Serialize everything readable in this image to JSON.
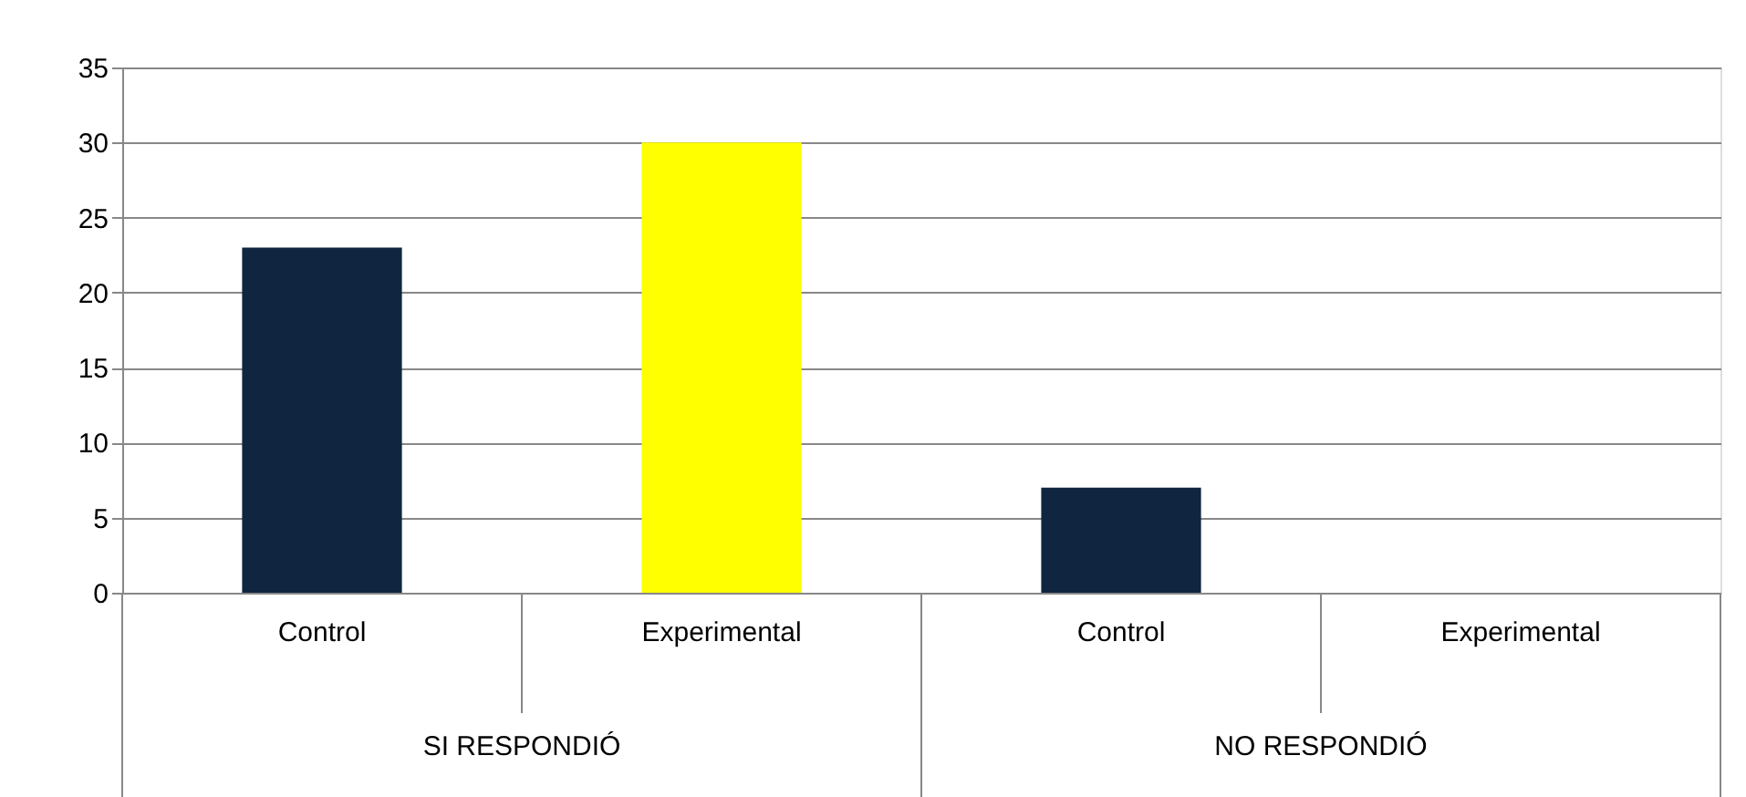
{
  "chart_data": {
    "type": "bar",
    "categories": [
      "Control",
      "Experimental",
      "Control",
      "Experimental"
    ],
    "values": [
      23,
      30,
      7,
      0
    ],
    "colors": [
      "#10253f",
      "#ffff00",
      "#10253f",
      "#ffff00"
    ],
    "ylim": [
      0,
      35
    ],
    "yticks": [
      0,
      5,
      10,
      15,
      20,
      25,
      30,
      35
    ],
    "grid": "y",
    "annotations": [
      "SI RESPONDIÓ",
      "NO RESPONDIÓ"
    ]
  }
}
